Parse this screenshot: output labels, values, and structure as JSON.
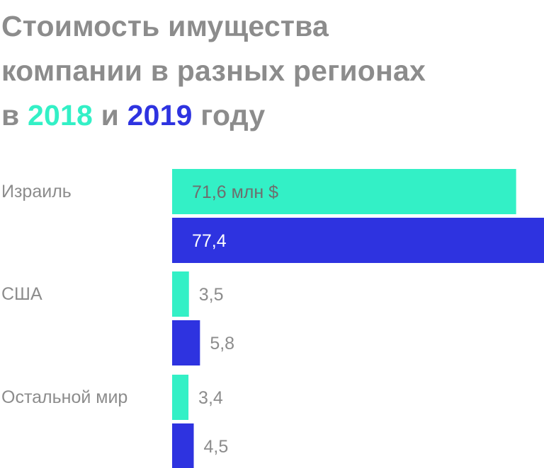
{
  "title": {
    "line1": "Стоимость имущества",
    "line2": "компании в разных регионах",
    "line3_prefix": "в",
    "year_2018": "2018",
    "line3_and": "и",
    "year_2019": "2019",
    "line3_suffix": "году"
  },
  "colors": {
    "title_gray": "#8c8c8c",
    "series_2018": "#33f0c6",
    "series_2019": "#2e33e0",
    "label_inside_2018": "#6e6e6e",
    "label_inside_2019": "#ffffff",
    "label_outside": "#8c8c8c"
  },
  "chart_data": {
    "type": "bar",
    "orientation": "horizontal",
    "title": "Стоимость имущества компании в разных регионах в 2018 и 2019 году",
    "categories": [
      "Израиль",
      "США",
      "Остальной мир"
    ],
    "series": [
      {
        "name": "2018",
        "values": [
          71.6,
          3.5,
          3.4
        ],
        "labels": [
          "71,6 млн $",
          "3,5",
          "3,4"
        ]
      },
      {
        "name": "2019",
        "values": [
          77.4,
          5.8,
          4.5
        ],
        "labels": [
          "77,4",
          "5,8",
          "4,5"
        ]
      }
    ],
    "xlim": [
      0,
      77.4
    ],
    "grid": false,
    "legend": "in title"
  }
}
